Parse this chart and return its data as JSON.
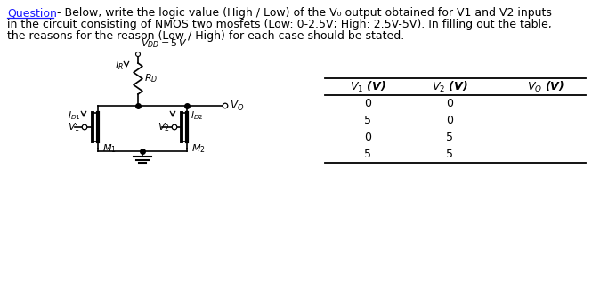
{
  "question_word": "Question",
  "question_dash": " - Below, write the logic value (High / Low) of the V",
  "question_sub": "0",
  "question_rest": " output obtained for V1 and V2 inputs",
  "question_line2": "in the circuit consisting of NMOS two mosfets (Low: 0-2.5V; High: 2.5V-5V). In filling out the table,",
  "question_line3": "the reasons for the reason (Low / High) for each case should be stated.",
  "vdd_label": "$V_{DD}=5\\,V$",
  "ir_label": "$I_R$",
  "rd_label": "$R_D$",
  "vo_label": "$V_O$",
  "id1_label": "$I_{D1}$",
  "id2_label": "$I_{D2}$",
  "m1_label": "$M_1$",
  "m2_label": "$M_2$",
  "v1_label": "$V_1$",
  "v2_label": "$V_2$",
  "table_col1_header": "$V_1$ (V)",
  "table_col2_header": "$V_2$ (V)",
  "table_col3_header": "$V_O$ (V)",
  "table_v1": [
    0,
    5,
    0,
    5
  ],
  "table_v2": [
    0,
    0,
    5,
    5
  ],
  "bg_color": "#ffffff",
  "text_color": "#000000",
  "underline_color": "#1a1aff",
  "line_color": "#000000"
}
